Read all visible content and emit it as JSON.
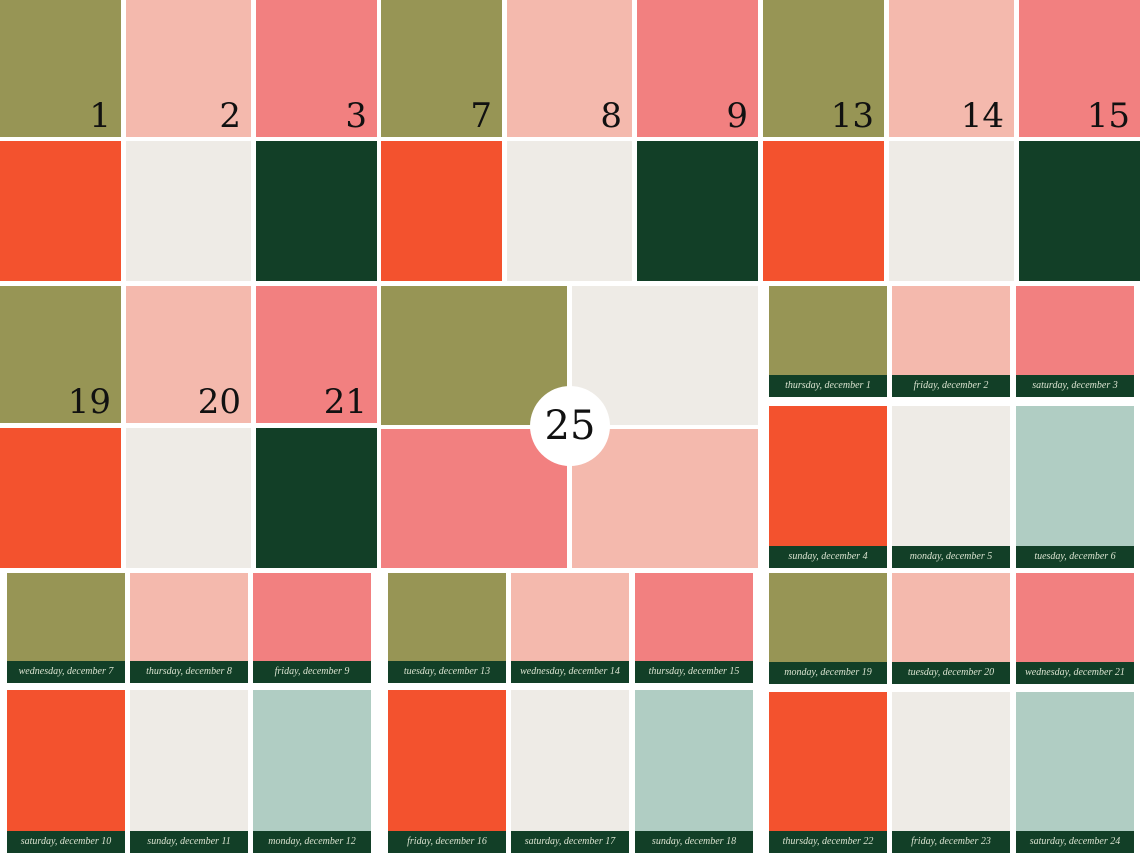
{
  "palette": {
    "olive": "#979555",
    "blush": "#f4b9ad",
    "coral": "#f28080",
    "orange": "#f3522e",
    "cream": "#eeebe6",
    "forest": "#123f27",
    "mint": "#b0cdc3",
    "label_text": "#d9e2cf"
  },
  "big_days": [
    {
      "day": "1",
      "color": "olive"
    },
    {
      "day": "2",
      "color": "blush"
    },
    {
      "day": "3",
      "color": "coral"
    },
    {
      "day": "7",
      "color": "olive"
    },
    {
      "day": "8",
      "color": "blush"
    },
    {
      "day": "9",
      "color": "coral"
    },
    {
      "day": "13",
      "color": "olive"
    },
    {
      "day": "14",
      "color": "blush"
    },
    {
      "day": "15",
      "color": "coral"
    },
    {
      "day": "19",
      "color": "olive"
    },
    {
      "day": "20",
      "color": "blush"
    },
    {
      "day": "21",
      "color": "coral"
    }
  ],
  "plain_tiles": [
    {
      "color": "orange"
    },
    {
      "color": "cream"
    },
    {
      "color": "forest"
    },
    {
      "color": "orange"
    },
    {
      "color": "cream"
    },
    {
      "color": "forest"
    },
    {
      "color": "orange"
    },
    {
      "color": "cream"
    },
    {
      "color": "forest"
    },
    {
      "color": "orange"
    },
    {
      "color": "cream"
    },
    {
      "color": "forest"
    }
  ],
  "center": {
    "day": "25",
    "quadrants": [
      {
        "color": "olive"
      },
      {
        "color": "cream"
      },
      {
        "color": "coral"
      },
      {
        "color": "blush"
      }
    ]
  },
  "cards": [
    {
      "label": "thursday, december 1",
      "color": "olive"
    },
    {
      "label": "friday, december 2",
      "color": "blush"
    },
    {
      "label": "saturday, december 3",
      "color": "coral"
    },
    {
      "label": "sunday, december 4",
      "color": "orange"
    },
    {
      "label": "monday, december 5",
      "color": "cream"
    },
    {
      "label": "tuesday, december 6",
      "color": "mint"
    },
    {
      "label": "wednesday, december 7",
      "color": "olive"
    },
    {
      "label": "thursday, december 8",
      "color": "blush"
    },
    {
      "label": "friday, december 9",
      "color": "coral"
    },
    {
      "label": "saturday, december 10",
      "color": "orange"
    },
    {
      "label": "sunday, december 11",
      "color": "cream"
    },
    {
      "label": "monday, december 12",
      "color": "mint"
    },
    {
      "label": "tuesday, december 13",
      "color": "olive"
    },
    {
      "label": "wednesday, december 14",
      "color": "blush"
    },
    {
      "label": "thursday, december 15",
      "color": "coral"
    },
    {
      "label": "friday, december 16",
      "color": "orange"
    },
    {
      "label": "saturday, december 17",
      "color": "cream"
    },
    {
      "label": "sunday, december 18",
      "color": "mint"
    },
    {
      "label": "monday, december 19",
      "color": "olive"
    },
    {
      "label": "tuesday, december 20",
      "color": "blush"
    },
    {
      "label": "wednesday, december 21",
      "color": "coral"
    },
    {
      "label": "thursday, december 22",
      "color": "orange"
    },
    {
      "label": "friday, december 23",
      "color": "cream"
    },
    {
      "label": "saturday, december 24",
      "color": "mint"
    }
  ]
}
